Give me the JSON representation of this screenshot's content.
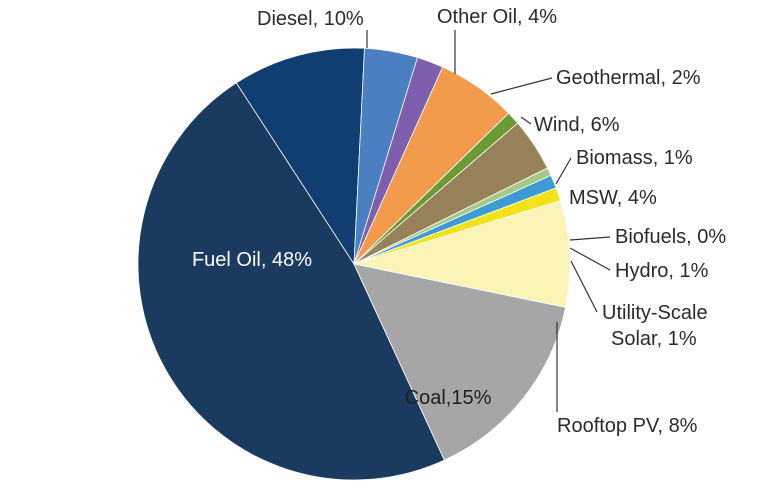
{
  "chart_data": {
    "type": "pie",
    "title": "",
    "start_angle_deg": 90,
    "direction": "clockwise",
    "slices": [
      {
        "name": "Fuel Oil",
        "label": "Fuel Oil, 48%",
        "value": 48,
        "color": "#1b3a60"
      },
      {
        "name": "Diesel",
        "label": "Diesel, 10%",
        "value": 10,
        "color": "#113e70"
      },
      {
        "name": "Other Oil",
        "label": "Other Oil, 4%",
        "value": 4,
        "color": "#4a7fc1"
      },
      {
        "name": "Geothermal",
        "label": "Geothermal, 2%",
        "value": 2,
        "color": "#7d5fae"
      },
      {
        "name": "Wind",
        "label": "Wind, 6%",
        "value": 6,
        "color": "#f29b4c"
      },
      {
        "name": "Biomass",
        "label": "Biomass, 1%",
        "value": 1,
        "color": "#6b9a34"
      },
      {
        "name": "MSW",
        "label": "MSW, 4%",
        "value": 4,
        "color": "#978159"
      },
      {
        "name": "Biofuels",
        "label": "Biofuels, 0%",
        "value": 0,
        "color": "#a6c98a"
      },
      {
        "name": "Hydro",
        "label": "Hydro, 1%",
        "value": 1,
        "color": "#3e9bd1"
      },
      {
        "name": "Utility-Scale Solar",
        "label": "Utility-Scale Solar, 1%",
        "label_lines": [
          "Utility-Scale",
          "Solar, 1%"
        ],
        "value": 1,
        "color": "#f2e318"
      },
      {
        "name": "Rooftop PV",
        "label": "Rooftop PV,  8%",
        "value": 8,
        "color": "#faf4b6"
      },
      {
        "name": "Coal",
        "label": "Coal,15%",
        "value": 15,
        "color": "#a6a6a6"
      }
    ]
  }
}
